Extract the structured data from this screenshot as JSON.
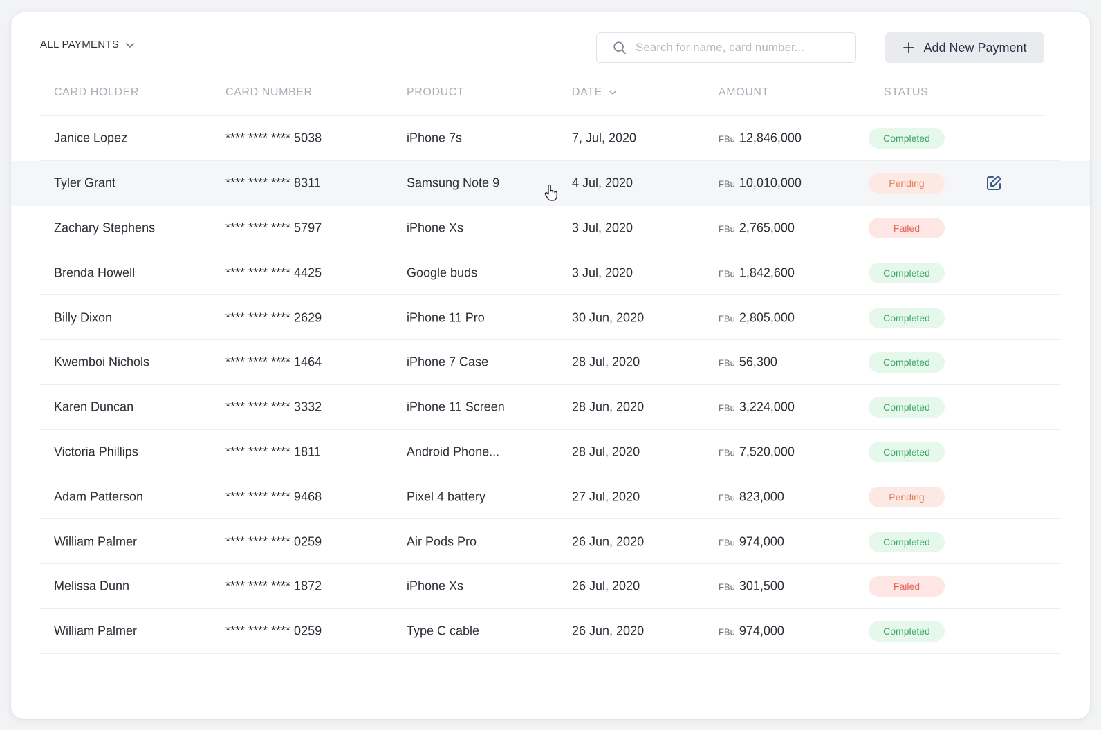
{
  "toolbar": {
    "filter_label": "ALL PAYMENTS",
    "search_placeholder": "Search for name, card number...",
    "add_button_label": "Add New Payment"
  },
  "columns": {
    "holder": "CARD HOLDER",
    "card": "CARD NUMBER",
    "product": "PRODUCT",
    "date": "DATE",
    "amount": "AMOUNT",
    "status": "STATUS"
  },
  "currency": "FBu",
  "status_colors": {
    "Completed": {
      "bg": "#e6f7ec",
      "fg": "#3aa964"
    },
    "Pending": {
      "bg": "#fde9e3",
      "fg": "#e0805f"
    },
    "Failed": {
      "bg": "#fde6e4",
      "fg": "#e36459"
    }
  },
  "accent_color": "#3d5a85",
  "rows": [
    {
      "holder": "Janice Lopez",
      "card": "**** **** **** 5038",
      "product": "iPhone 7s",
      "date": "7, Jul, 2020",
      "amount": "12,846,000",
      "status": "Completed"
    },
    {
      "holder": "Tyler Grant",
      "card": "**** **** **** 8311",
      "product": "Samsung Note 9",
      "date": "4 Jul, 2020",
      "amount": "10,010,000",
      "status": "Pending",
      "hover": true
    },
    {
      "holder": "Zachary Stephens",
      "card": "**** **** **** 5797",
      "product": "iPhone Xs",
      "date": "3 Jul, 2020",
      "amount": "2,765,000",
      "status": "Failed"
    },
    {
      "holder": "Brenda Howell",
      "card": "**** **** **** 4425",
      "product": "Google buds",
      "date": "3 Jul, 2020",
      "amount": "1,842,600",
      "status": "Completed"
    },
    {
      "holder": "Billy Dixon",
      "card": "**** **** **** 2629",
      "product": "iPhone 11 Pro",
      "date": "30 Jun, 2020",
      "amount": "2,805,000",
      "status": "Completed"
    },
    {
      "holder": "Kwemboi Nichols",
      "card": "**** **** **** 1464",
      "product": "iPhone 7 Case",
      "date": "28 Jul, 2020",
      "amount": "56,300",
      "status": "Completed"
    },
    {
      "holder": "Karen Duncan",
      "card": "**** **** **** 3332",
      "product": "iPhone 11 Screen",
      "date": "28 Jun, 2020",
      "amount": "3,224,000",
      "status": "Completed"
    },
    {
      "holder": "Victoria Phillips",
      "card": "**** **** **** 1811",
      "product": "Android Phone...",
      "date": "28 Jul, 2020",
      "amount": "7,520,000",
      "status": "Completed"
    },
    {
      "holder": "Adam Patterson",
      "card": "**** **** **** 9468",
      "product": "Pixel 4 battery",
      "date": "27 Jul, 2020",
      "amount": "823,000",
      "status": "Pending"
    },
    {
      "holder": "William Palmer",
      "card": "**** **** **** 0259",
      "product": "Air Pods Pro",
      "date": "26 Jun, 2020",
      "amount": "974,000",
      "status": "Completed"
    },
    {
      "holder": "Melissa Dunn",
      "card": "**** **** **** 1872",
      "product": "iPhone Xs",
      "date": "26 Jul, 2020",
      "amount": "301,500",
      "status": "Failed"
    },
    {
      "holder": "William Palmer",
      "card": "**** **** **** 0259",
      "product": "Type C cable",
      "date": "26 Jun, 2020",
      "amount": "974,000",
      "status": "Completed"
    }
  ]
}
